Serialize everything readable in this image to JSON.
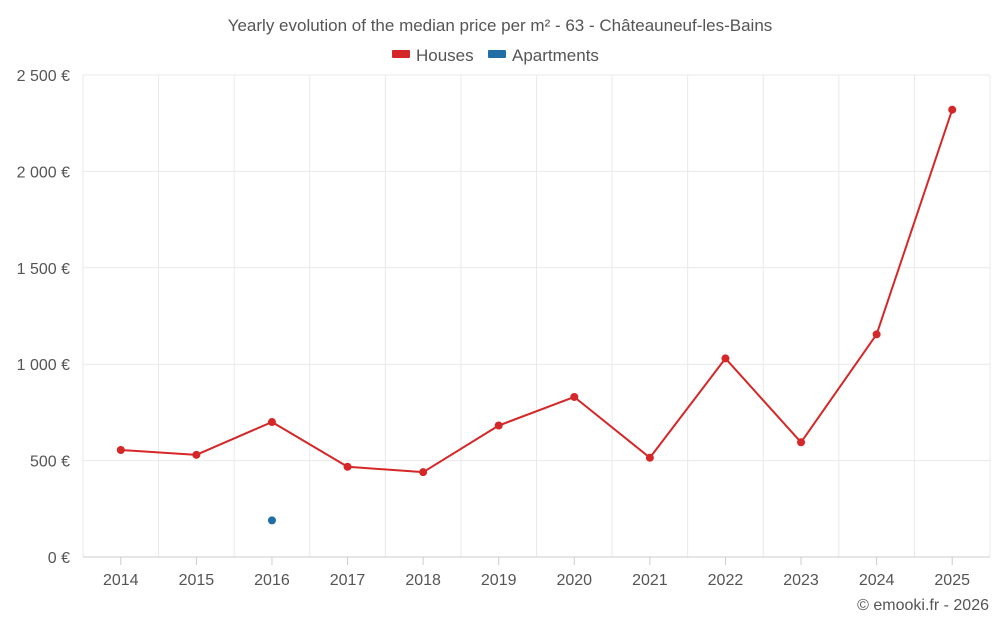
{
  "chart_data": {
    "type": "line",
    "title": "Yearly evolution of the median price per m² - 63 - Châteauneuf-les-Bains",
    "categories": [
      "2014",
      "2015",
      "2016",
      "2017",
      "2018",
      "2019",
      "2020",
      "2021",
      "2022",
      "2023",
      "2024",
      "2025"
    ],
    "series": [
      {
        "name": "Houses",
        "color": "#d62728",
        "values": [
          555,
          530,
          700,
          468,
          440,
          682,
          830,
          515,
          1030,
          595,
          1155,
          2320
        ]
      },
      {
        "name": "Apartments",
        "color": "#1f6fa6",
        "values": [
          null,
          null,
          190,
          null,
          null,
          null,
          null,
          null,
          null,
          null,
          null,
          null
        ]
      }
    ],
    "ylim": [
      0,
      2500
    ],
    "yticks": [
      0,
      500,
      1000,
      1500,
      2000,
      2500
    ],
    "ytick_labels": [
      "0 €",
      "500 €",
      "1 000 €",
      "1 500 €",
      "2 000 €",
      "2 500 €"
    ],
    "xlabel": "",
    "ylabel": "",
    "grid": true,
    "legend_position": "top-center"
  },
  "credit": "© emooki.fr - 2026"
}
